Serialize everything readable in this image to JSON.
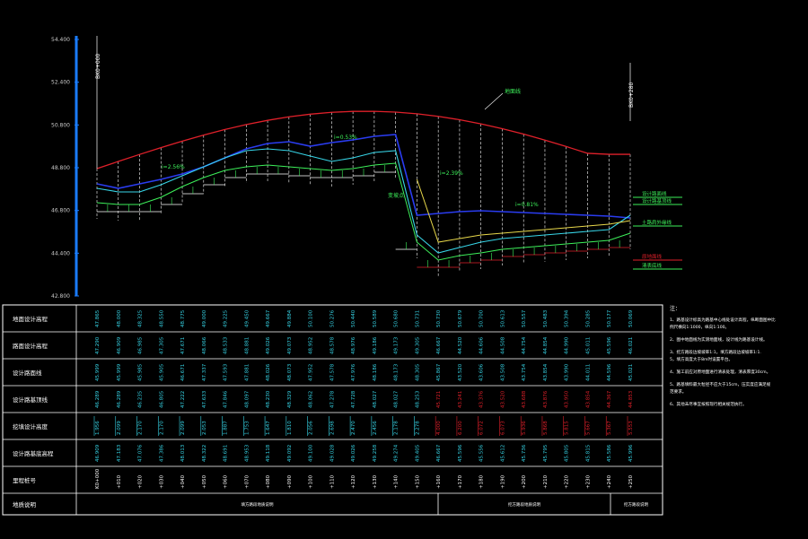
{
  "domain": "Diagram",
  "colors": {
    "background": "#000000",
    "ground_line": "#e0202a",
    "design_line": "#2a3cf0",
    "grid": "#ffffff",
    "label_cyan": "#37d6e8",
    "label_red": "#e0202a",
    "label_green": "#3df05a",
    "axis_bar": "#1a7cff"
  },
  "elevation_axis": {
    "labels": [
      "54.400",
      "52.400",
      "50.800",
      "48.800",
      "46.800",
      "44.400",
      "42.800"
    ]
  },
  "profile_annotations": {
    "left_vertical": "BK0+000",
    "right_vertical": "BK0+280",
    "top_tag": "地面线",
    "slopes": [
      "i=2.56%",
      "i=0.53%",
      "i=2.39%",
      "i=0.81%"
    ],
    "mid_tag": "变坡点",
    "right_legend": [
      "设计路面线",
      "设计路基顶线",
      "土路肩外缘线",
      "原地面线",
      "清表底线"
    ]
  },
  "table": {
    "row_headers": [
      "地面设计高程",
      "路面设计高程",
      "设计路面线",
      "设计路基顶线",
      "挖填设计高度",
      "设计路基底高程",
      "里程桩号",
      "地质说明"
    ],
    "columns": [
      {
        "station": "K0+000",
        "r1": "47.865",
        "r2": "47.290",
        "r3": "45.999",
        "r4": "46.289",
        "r5": "1.956",
        "r6": "46.909"
      },
      {
        "station": "+010",
        "r1": "48.000",
        "r2": "46.909",
        "r3": "45.999",
        "r4": "46.289",
        "r5": "2.099",
        "r6": "47.183"
      },
      {
        "station": "+020",
        "r1": "48.325",
        "r2": "46.985",
        "r3": "45.985",
        "r4": "46.235",
        "r5": "2.170",
        "r6": "47.076"
      },
      {
        "station": "+030",
        "r1": "48.550",
        "r2": "47.305",
        "r3": "45.905",
        "r4": "46.805",
        "r5": "2.170",
        "r6": "47.386"
      },
      {
        "station": "+040",
        "r1": "48.775",
        "r2": "47.671",
        "r3": "46.671",
        "r4": "47.222",
        "r5": "2.099",
        "r6": "48.013"
      },
      {
        "station": "+050",
        "r1": "49.000",
        "r2": "48.066",
        "r3": "47.337",
        "r4": "47.633",
        "r5": "2.053",
        "r6": "48.322"
      },
      {
        "station": "+060",
        "r1": "49.225",
        "r2": "48.533",
        "r3": "47.593",
        "r4": "47.846",
        "r5": "1.887",
        "r6": "48.691"
      },
      {
        "station": "+070",
        "r1": "49.450",
        "r2": "48.881",
        "r3": "47.881",
        "r4": "48.097",
        "r5": "1.753",
        "r6": "48.953"
      },
      {
        "station": "+080",
        "r1": "49.667",
        "r2": "49.026",
        "r3": "48.026",
        "r4": "48.230",
        "r5": "1.647",
        "r6": "49.118"
      },
      {
        "station": "+090",
        "r1": "49.884",
        "r2": "49.073",
        "r3": "48.073",
        "r4": "48.329",
        "r5": "1.810",
        "r6": "49.092"
      },
      {
        "station": "+100",
        "r1": "50.100",
        "r2": "48.952",
        "r3": "47.952",
        "r4": "48.062",
        "r5": "2.056",
        "r6": "49.100"
      },
      {
        "station": "+110",
        "r1": "50.276",
        "r2": "48.578",
        "r3": "47.578",
        "r4": "47.278",
        "r5": "2.698",
        "r6": "49.028"
      },
      {
        "station": "+120",
        "r1": "50.440",
        "r2": "48.976",
        "r3": "47.976",
        "r4": "47.728",
        "r5": "2.470",
        "r6": "49.026"
      },
      {
        "station": "+130",
        "r1": "50.589",
        "r2": "49.186",
        "r3": "48.186",
        "r4": "48.027",
        "r5": "2.456",
        "r6": "49.258"
      },
      {
        "station": "+140",
        "r1": "50.680",
        "r2": "49.173",
        "r3": "48.173",
        "r4": "48.027",
        "r5": "2.178",
        "r6": "49.274"
      },
      {
        "station": "+150",
        "r1": "50.731",
        "r2": "49.305",
        "r3": "48.305",
        "r4": "48.253",
        "r5": "2.278",
        "r6": "49.405"
      },
      {
        "station": "+160",
        "r1": "50.730",
        "r2": "46.667",
        "r3": "45.867",
        "r4": "45.721",
        "r5": "4.000",
        "r6": "46.667"
      },
      {
        "station": "+170",
        "r1": "50.679",
        "r2": "44.520",
        "r3": "43.520",
        "r4": "43.241",
        "r5": "6.200",
        "r6": "45.596"
      },
      {
        "station": "+180",
        "r1": "50.700",
        "r2": "44.606",
        "r3": "43.606",
        "r4": "43.376",
        "r5": "6.072",
        "r6": "45.556"
      },
      {
        "station": "+190",
        "r1": "50.613",
        "r2": "44.508",
        "r3": "43.508",
        "r4": "43.520",
        "r5": "6.073",
        "r6": "45.612"
      },
      {
        "station": "+200",
        "r1": "50.557",
        "r2": "44.754",
        "r3": "43.754",
        "r4": "43.688",
        "r5": "5.936",
        "r6": "45.736"
      },
      {
        "station": "+210",
        "r1": "50.483",
        "r2": "44.854",
        "r3": "43.854",
        "r4": "43.876",
        "r5": "5.868",
        "r6": "45.795"
      },
      {
        "station": "+220",
        "r1": "50.394",
        "r2": "44.990",
        "r3": "43.990",
        "r4": "43.950",
        "r5": "5.815",
        "r6": "45.805"
      },
      {
        "station": "+230",
        "r1": "50.285",
        "r2": "45.011",
        "r3": "44.011",
        "r4": "43.854",
        "r5": "5.667",
        "r6": "45.815"
      },
      {
        "station": "+240",
        "r1": "50.177",
        "r2": "45.596",
        "r3": "44.596",
        "r4": "44.367",
        "r5": "5.367",
        "r6": "45.586"
      },
      {
        "station": "+250",
        "r1": "50.069",
        "r2": "46.021",
        "r3": "45.021",
        "r4": "44.853",
        "r5": "5.553",
        "r6": "45.996"
      }
    ],
    "geology": [
      {
        "text": "填方路段地质说明"
      },
      {
        "text": "挖方路段地质说明"
      },
      {
        "text": "挖方路段说明"
      }
    ]
  },
  "notes": {
    "title": "注：",
    "items": [
      "1、路基设计标高为路基中心线处设计高程，纵断面图中比例尺横向1:1000，纵向1:100。",
      "2、图中地面线为实测地面线，设计线为路基设计线。",
      "3、挖方路段边坡坡率1:1，填方路段边坡坡率1:1.5，填方高度大于8m时设置平台。",
      "4、施工前应对原地面进行清表处理，清表厚度30cm。",
      "5、路基填料最大粒径不应大于15cm，压实度应满足规范要求。",
      "6、其他未尽事宜按照现行相关规范执行。"
    ]
  }
}
